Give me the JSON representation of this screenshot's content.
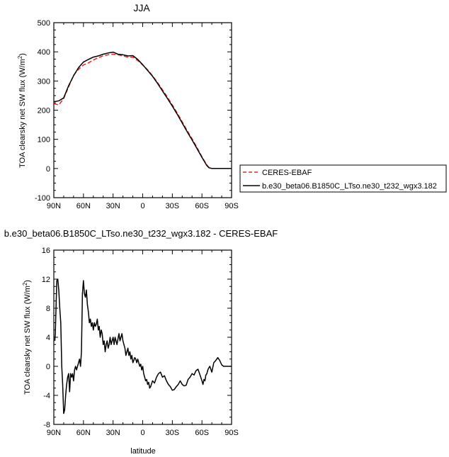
{
  "chart_data": [
    {
      "type": "line",
      "title": "JJA",
      "xlabel": "",
      "ylabel": "TOA clearsky net SW flux (W/m²)",
      "xlim": [
        90,
        -90
      ],
      "ylim": [
        -100,
        500
      ],
      "x_ticks": [
        {
          "value": 90,
          "label": "90N"
        },
        {
          "value": 60,
          "label": "60N"
        },
        {
          "value": 30,
          "label": "30N"
        },
        {
          "value": 0,
          "label": "0"
        },
        {
          "value": -30,
          "label": "30S"
        },
        {
          "value": -60,
          "label": "60S"
        },
        {
          "value": -90,
          "label": "90S"
        }
      ],
      "y_ticks": [
        -100,
        0,
        100,
        200,
        300,
        400,
        500
      ],
      "legend": {
        "placement": "right"
      },
      "series": [
        {
          "name": "CERES-EBAF",
          "color": "#e8231f",
          "dash": "dashed",
          "x": [
            90,
            85,
            80,
            75,
            70,
            65,
            60,
            55,
            50,
            45,
            40,
            35,
            30,
            25,
            20,
            15,
            10,
            5,
            0,
            -5,
            -10,
            -15,
            -20,
            -25,
            -30,
            -35,
            -40,
            -45,
            -50,
            -55,
            -60,
            -65,
            -67,
            -70,
            -75,
            -80,
            -85,
            -90
          ],
          "y": [
            222,
            218,
            240,
            280,
            320,
            340,
            355,
            362,
            372,
            380,
            386,
            390,
            392,
            390,
            386,
            382,
            382,
            370,
            355,
            338,
            318,
            295,
            270,
            245,
            218,
            190,
            160,
            130,
            102,
            72,
            40,
            12,
            4,
            0,
            0,
            0,
            0,
            0
          ]
        },
        {
          "name": "b.e30_beta06.B1850C_LTso.ne30_t232_wgx3.182",
          "color": "#000000",
          "dash": "solid",
          "x": [
            90,
            85,
            80,
            75,
            70,
            65,
            60,
            55,
            50,
            45,
            40,
            35,
            30,
            25,
            20,
            15,
            10,
            5,
            0,
            -5,
            -10,
            -15,
            -20,
            -25,
            -30,
            -35,
            -40,
            -45,
            -50,
            -55,
            -60,
            -65,
            -67,
            -70,
            -75,
            -80,
            -85,
            -90
          ],
          "y": [
            229,
            232,
            242,
            284,
            318,
            346,
            365,
            374,
            382,
            386,
            392,
            396,
            399,
            392,
            390,
            386,
            387,
            374,
            356,
            336,
            316,
            292,
            266,
            240,
            214,
            186,
            156,
            126,
            98,
            68,
            38,
            10,
            3,
            0,
            0,
            0,
            0,
            0
          ]
        }
      ]
    },
    {
      "type": "line",
      "title": "b.e30_beta06.B1850C_LTso.ne30_t232_wgx3.182 - CERES-EBAF",
      "xlabel": "latitude",
      "ylabel": "TOA clearsky net SW flux (W/m²)",
      "xlim": [
        90,
        -90
      ],
      "ylim": [
        -8,
        16
      ],
      "x_ticks": [
        {
          "value": 90,
          "label": "90N"
        },
        {
          "value": 60,
          "label": "60N"
        },
        {
          "value": 30,
          "label": "30N"
        },
        {
          "value": 0,
          "label": "0"
        },
        {
          "value": -30,
          "label": "30S"
        },
        {
          "value": -60,
          "label": "60S"
        },
        {
          "value": -90,
          "label": "90S"
        }
      ],
      "y_ticks": [
        -8,
        -4,
        0,
        4,
        8,
        12,
        16
      ],
      "series": [
        {
          "color": "#000000",
          "x": [
            89,
            88.5,
            88,
            87,
            86,
            85,
            84,
            83,
            82,
            81,
            80,
            79,
            78,
            77,
            76,
            75,
            74,
            73,
            72,
            71,
            70,
            69,
            68,
            67,
            66,
            65,
            64,
            63,
            62,
            61,
            60,
            59,
            58,
            57,
            56,
            55,
            54,
            53,
            52,
            51,
            50,
            49,
            48,
            47,
            46,
            45,
            44,
            43,
            42,
            41,
            40,
            39,
            38,
            37,
            36,
            35,
            34,
            33,
            32,
            31,
            30,
            29,
            28,
            27,
            26,
            25,
            24,
            23,
            22,
            21,
            20,
            19,
            18,
            17,
            16,
            15,
            14,
            13,
            12,
            11,
            10,
            9,
            8,
            7,
            6,
            5,
            4,
            3,
            2,
            1,
            0,
            -1,
            -2,
            -3,
            -4,
            -5,
            -6,
            -7,
            -8,
            -10,
            -12,
            -14,
            -16,
            -18,
            -20,
            -22,
            -24,
            -26,
            -28,
            -30,
            -32,
            -34,
            -36,
            -38,
            -40,
            -42,
            -44,
            -46,
            -48,
            -50,
            -52,
            -54,
            -56,
            -58,
            -60,
            -61,
            -62,
            -63,
            -64,
            -65,
            -66,
            -67,
            -68,
            -70,
            -72,
            -74,
            -76,
            -78,
            -80,
            -82,
            -84,
            -86,
            -88,
            -90
          ],
          "y": [
            3.5,
            4.5,
            7.0,
            11.8,
            12.0,
            10.5,
            8.0,
            6.0,
            0.0,
            -2.5,
            -6.5,
            -6.0,
            -4.0,
            -2.5,
            -1.5,
            -1.0,
            -3.5,
            -1.0,
            -1.5,
            -1.0,
            -2.0,
            -0.5,
            0.0,
            -0.5,
            0.0,
            0.5,
            1.0,
            0.0,
            2.0,
            10.0,
            11.8,
            10.0,
            9.5,
            10.5,
            8.5,
            7.5,
            6.0,
            6.5,
            5.5,
            6.0,
            5.0,
            6.0,
            5.5,
            5.8,
            6.5,
            5.0,
            5.5,
            4.0,
            5.0,
            4.5,
            3.0,
            3.5,
            2.0,
            3.0,
            3.5,
            2.5,
            3.0,
            4.0,
            3.0,
            3.5,
            4.0,
            3.0,
            4.0,
            3.5,
            3.0,
            3.8,
            4.5,
            3.5,
            4.0,
            4.5,
            3.5,
            3.0,
            2.5,
            1.5,
            2.0,
            2.5,
            1.5,
            2.0,
            1.0,
            1.5,
            0.5,
            0.8,
            1.2,
            1.0,
            0.5,
            1.0,
            0.5,
            0.0,
            0.3,
            -0.5,
            0.0,
            -1.0,
            -1.5,
            -2.0,
            -1.8,
            -2.5,
            -2.2,
            -3.0,
            -2.8,
            -2.0,
            -2.3,
            -1.5,
            -1.0,
            -0.8,
            -1.5,
            -1.3,
            -2.0,
            -2.5,
            -2.8,
            -3.3,
            -3.2,
            -2.8,
            -2.5,
            -2.0,
            -2.5,
            -2.7,
            -2.6,
            -1.8,
            -1.5,
            -1.0,
            -1.2,
            -0.6,
            -0.4,
            -1.2,
            -2.0,
            -2.5,
            -1.8,
            -2.0,
            -1.2,
            -1.0,
            -0.5,
            -0.2,
            0.0,
            -0.8,
            0.5,
            0.8,
            1.2,
            0.8,
            0.2,
            0.0,
            0.0,
            0.0,
            0.0,
            0.0
          ]
        }
      ]
    }
  ]
}
